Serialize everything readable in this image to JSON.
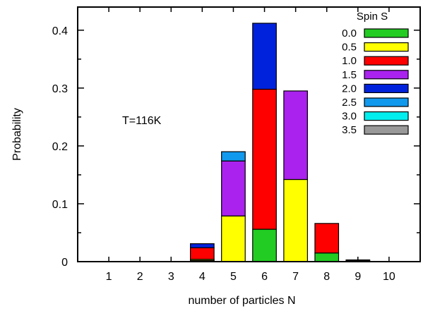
{
  "chart_data": {
    "type": "bar",
    "stacked": true,
    "title": "",
    "xlabel": "number of particles N",
    "ylabel": "Probability",
    "annotation": "T=116K",
    "categories": [
      "1",
      "2",
      "3",
      "4",
      "5",
      "6",
      "7",
      "8",
      "9",
      "10"
    ],
    "xlim": [
      0,
      11
    ],
    "ylim": [
      0,
      0.44
    ],
    "y_ticks": [
      "0",
      "0.1",
      "0.2",
      "0.3",
      "0.4"
    ],
    "legend": {
      "title": "Spin S",
      "placement": "top-right"
    },
    "series": [
      {
        "name": "0.0",
        "color": "#22cc22",
        "values": [
          0,
          0,
          0,
          0.002,
          0,
          0.056,
          0,
          0.015,
          0.002,
          0
        ]
      },
      {
        "name": "0.5",
        "color": "#ffff00",
        "values": [
          0,
          0,
          0,
          0.002,
          0.079,
          0,
          0.142,
          0,
          0.001,
          0
        ]
      },
      {
        "name": "1.0",
        "color": "#ff0000",
        "values": [
          0,
          0,
          0,
          0.02,
          0,
          0.242,
          0,
          0.051,
          0,
          0
        ]
      },
      {
        "name": "1.5",
        "color": "#aa22ee",
        "values": [
          0,
          0,
          0,
          0,
          0.095,
          0,
          0.153,
          0,
          0,
          0
        ]
      },
      {
        "name": "2.0",
        "color": "#0022dd",
        "values": [
          0,
          0,
          0,
          0.007,
          0,
          0.114,
          0,
          0,
          0,
          0
        ]
      },
      {
        "name": "2.5",
        "color": "#1199ee",
        "values": [
          0,
          0,
          0,
          0,
          0.016,
          0,
          0,
          0,
          0,
          0
        ]
      },
      {
        "name": "3.0",
        "color": "#00eeee",
        "values": [
          0,
          0,
          0,
          0,
          0,
          0,
          0,
          0,
          0,
          0
        ]
      },
      {
        "name": "3.5",
        "color": "#999999",
        "values": [
          0,
          0,
          0,
          0,
          0,
          0,
          0,
          0,
          0,
          0
        ]
      }
    ]
  }
}
